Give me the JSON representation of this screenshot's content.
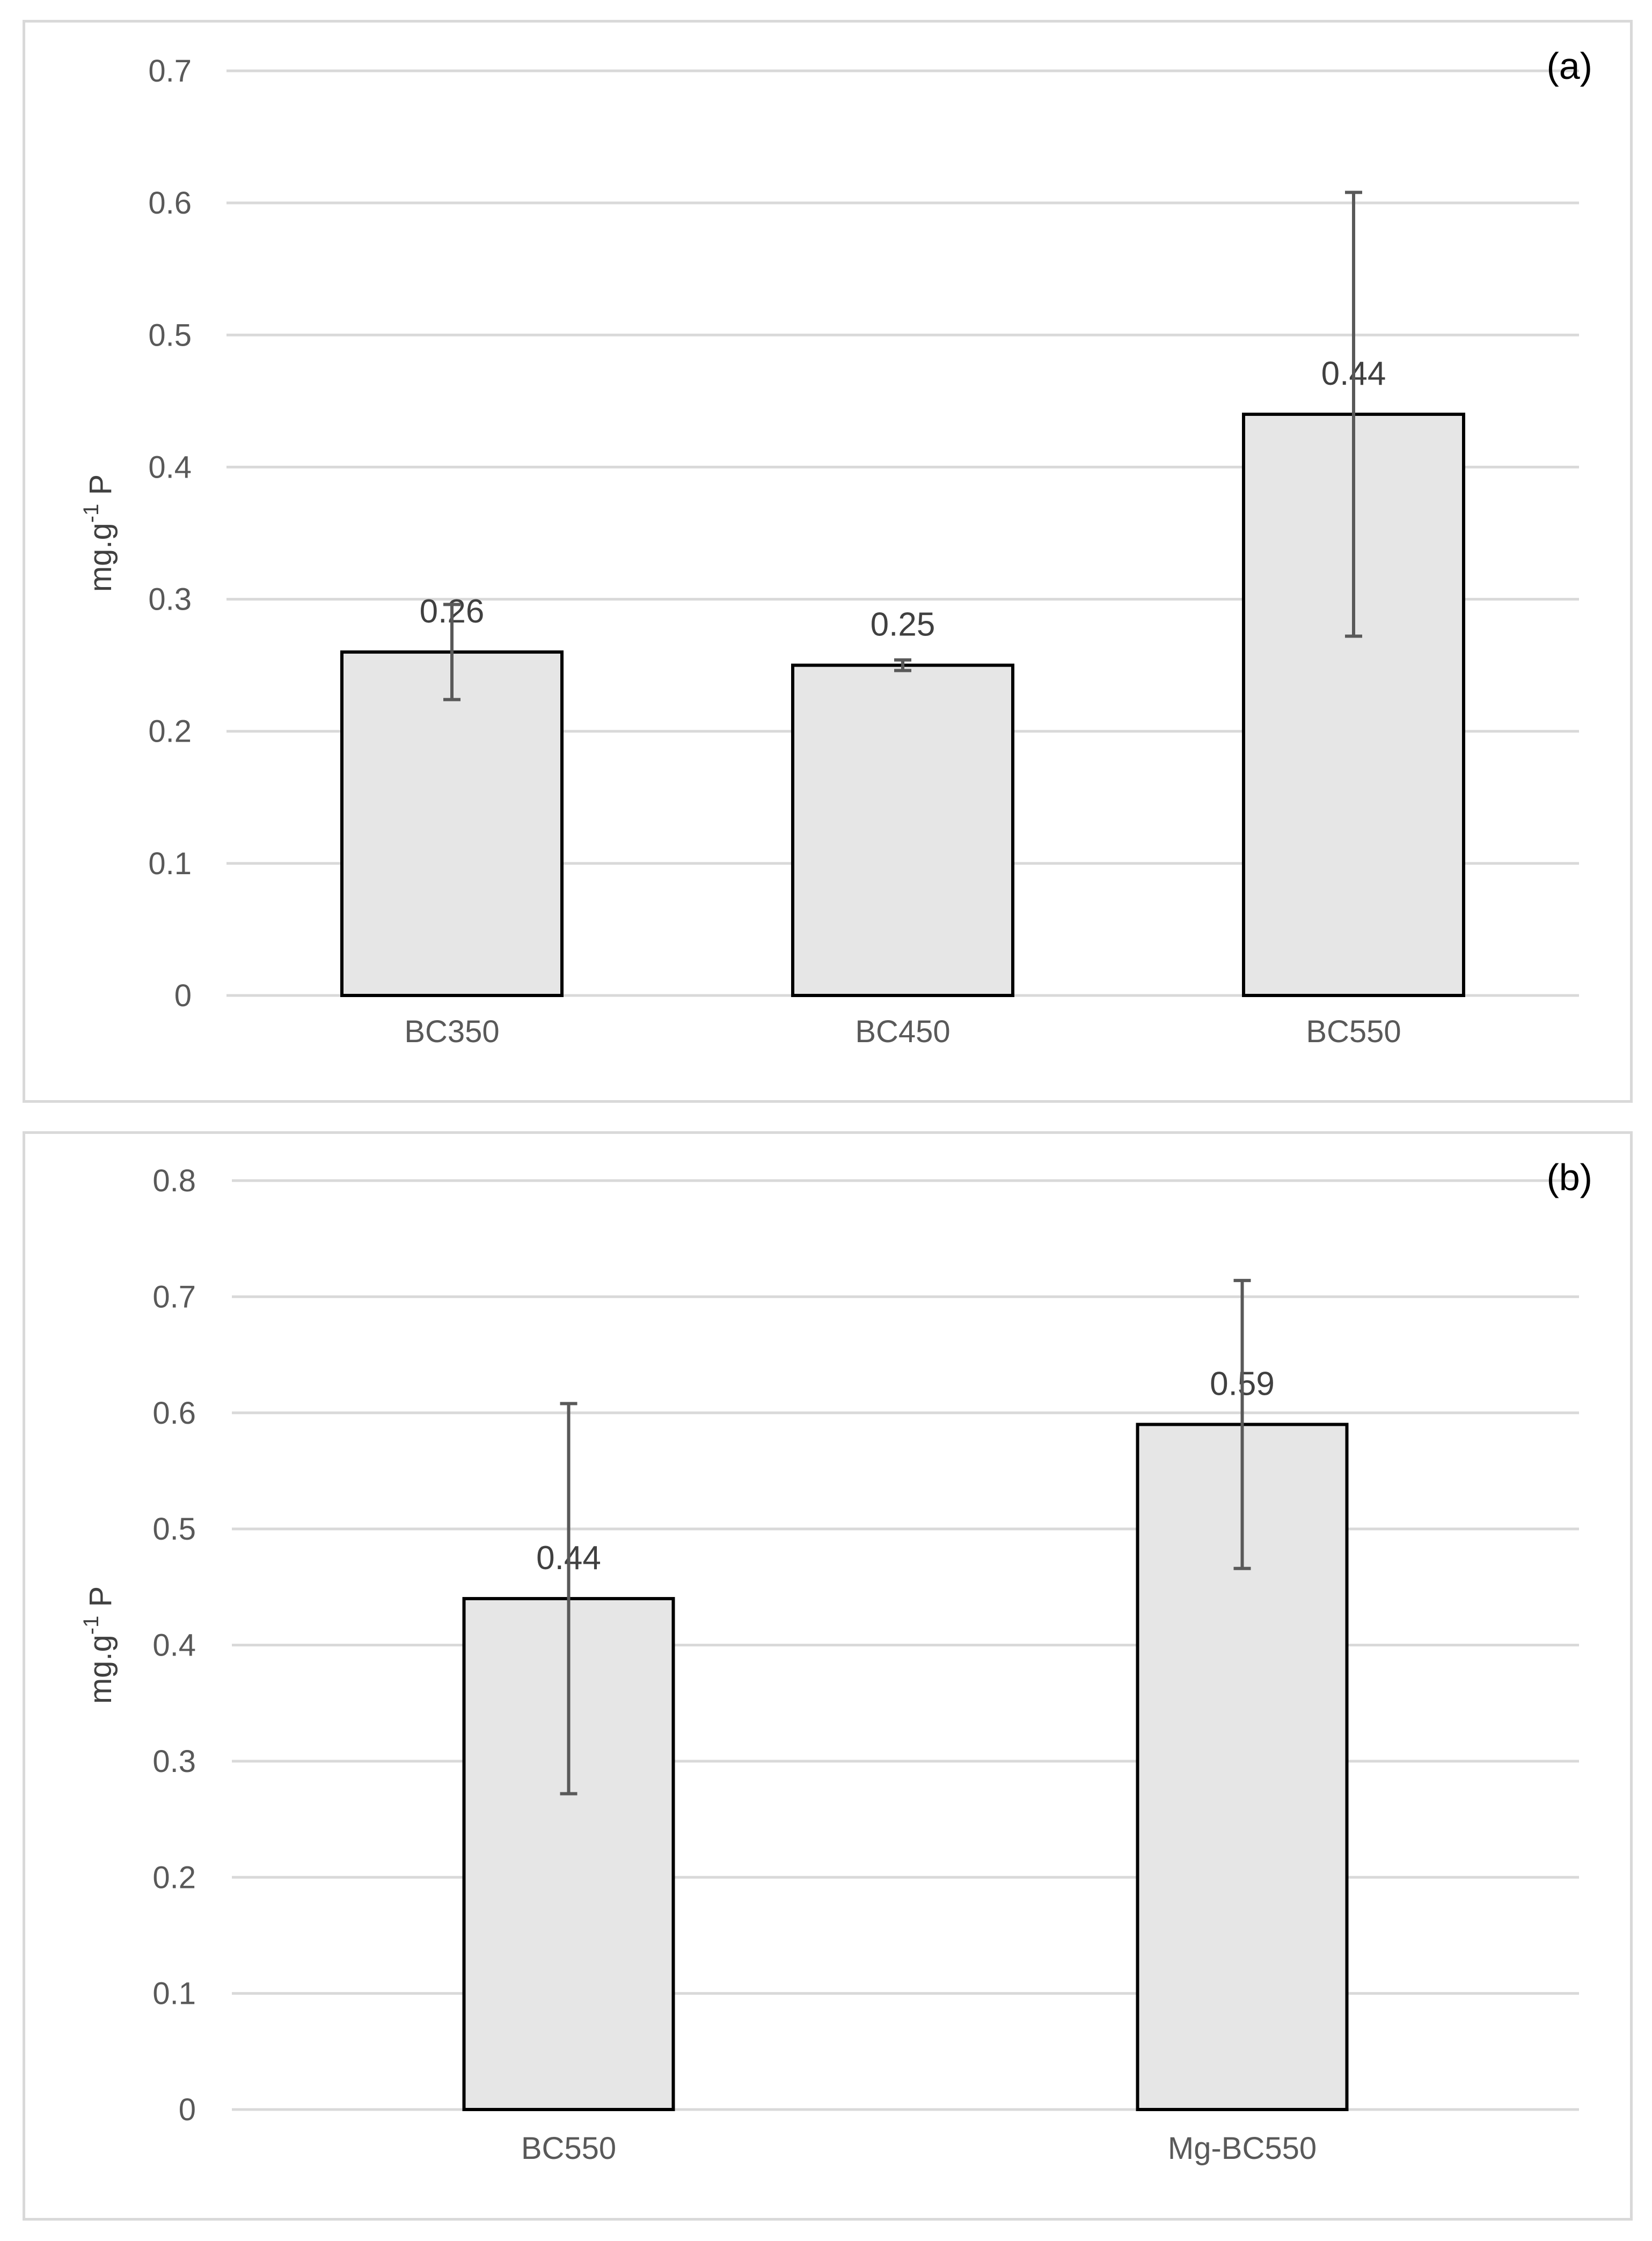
{
  "chart_data": [
    {
      "type": "bar",
      "panel_label": "(a)",
      "ylabel": "mg.g-1 P",
      "ylabel_base": "mg.g",
      "ylabel_sup": "-1",
      "ylabel_tail": " P",
      "ylim": [
        0,
        0.7
      ],
      "yticks": [
        "0",
        "0.1",
        "0.2",
        "0.3",
        "0.4",
        "0.5",
        "0.6",
        "0.7"
      ],
      "grid": true,
      "categories": [
        "BC350",
        "BC450",
        "BC550"
      ],
      "values": [
        0.26,
        0.25,
        0.44
      ],
      "value_labels": [
        "0.26",
        "0.25",
        "0.44"
      ],
      "error_low": [
        0.224,
        0.246,
        0.272
      ],
      "error_high": [
        0.296,
        0.254,
        0.608
      ],
      "bar_fill": "#e6e6e6",
      "bar_stroke": "#000000",
      "error_color": "#595959",
      "grid_color": "#d9d9d9"
    },
    {
      "type": "bar",
      "panel_label": "(b)",
      "ylabel": "mg.g-1 P",
      "ylabel_base": "mg.g",
      "ylabel_sup": "-1",
      "ylabel_tail": " P",
      "ylim": [
        0,
        0.8
      ],
      "yticks": [
        "0",
        "0.1",
        "0.2",
        "0.3",
        "0.4",
        "0.5",
        "0.6",
        "0.7",
        "0.8"
      ],
      "grid": true,
      "categories": [
        "BC550",
        "Mg-BC550"
      ],
      "values": [
        0.44,
        0.59
      ],
      "value_labels": [
        "0.44",
        "0.59"
      ],
      "error_low": [
        0.272,
        0.466
      ],
      "error_high": [
        0.608,
        0.714
      ],
      "bar_fill": "#e6e6e6",
      "bar_stroke": "#000000",
      "error_color": "#595959",
      "grid_color": "#d9d9d9"
    }
  ]
}
